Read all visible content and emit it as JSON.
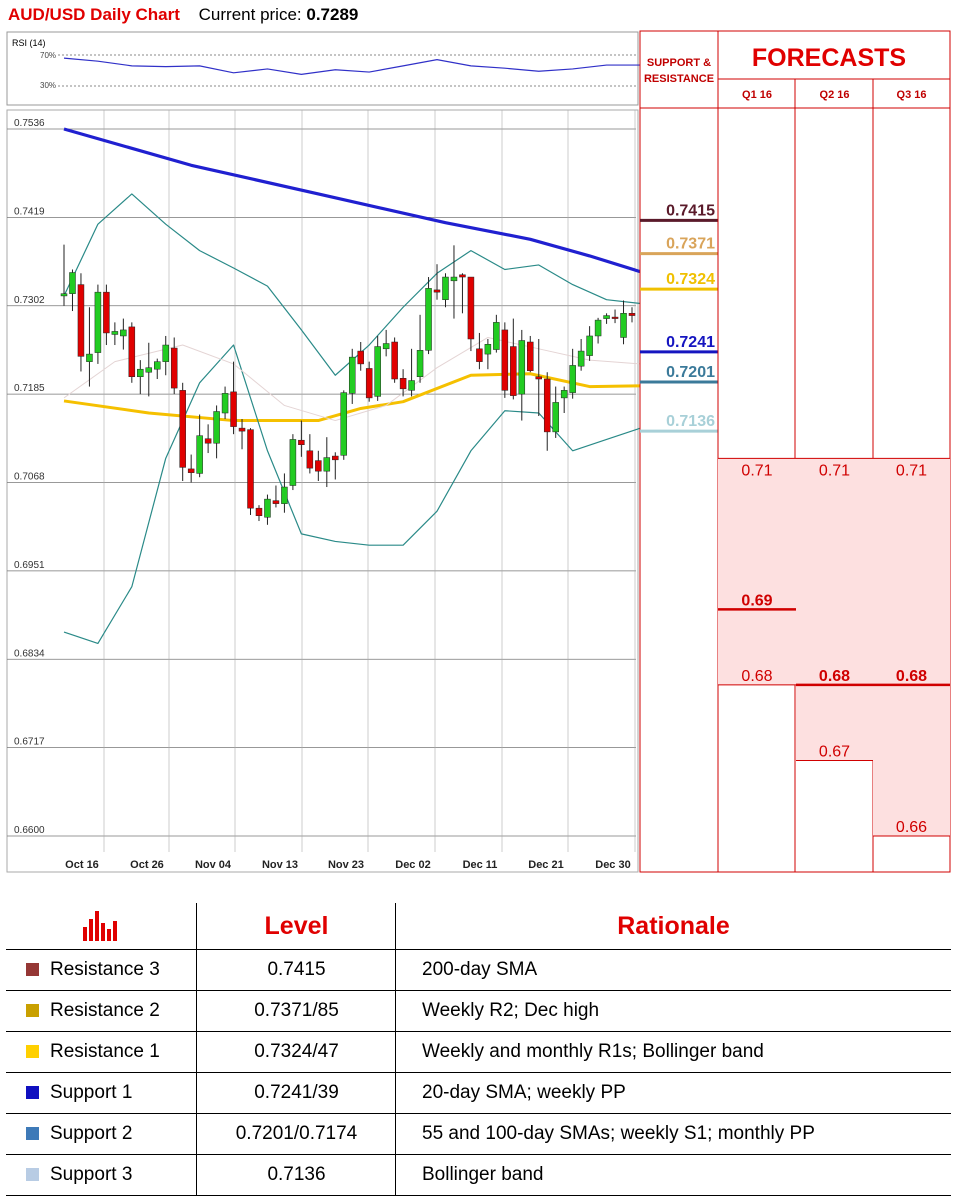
{
  "header": {
    "title": "AUD/USD Daily Chart",
    "current_price_label": "Current price:",
    "current_price": "0.7289"
  },
  "rsi": {
    "label": "RSI (14)",
    "upper": "70%",
    "lower": "30%"
  },
  "chart_data": {
    "type": "line",
    "y_ticks": [
      "0.7536",
      "0.7419",
      "0.7302",
      "0.7185",
      "0.7068",
      "0.6951",
      "0.6834",
      "0.6717",
      "0.6600"
    ],
    "ylim": [
      0.66,
      0.7536
    ],
    "x_ticks": [
      "Oct 16",
      "Oct 26",
      "Nov 04",
      "Nov 13",
      "Nov 23",
      "Dec 02",
      "Dec 11",
      "Dec 21",
      "Dec 30"
    ],
    "candles": [
      {
        "o": 0.7315,
        "h": 0.7383,
        "l": 0.7302,
        "c": 0.7318
      },
      {
        "o": 0.7318,
        "h": 0.735,
        "l": 0.7295,
        "c": 0.7346
      },
      {
        "o": 0.733,
        "h": 0.7345,
        "l": 0.7215,
        "c": 0.7235
      },
      {
        "o": 0.7228,
        "h": 0.73,
        "l": 0.7195,
        "c": 0.7238
      },
      {
        "o": 0.724,
        "h": 0.733,
        "l": 0.7225,
        "c": 0.732
      },
      {
        "o": 0.732,
        "h": 0.733,
        "l": 0.725,
        "c": 0.7266
      },
      {
        "o": 0.7264,
        "h": 0.728,
        "l": 0.725,
        "c": 0.7268
      },
      {
        "o": 0.7262,
        "h": 0.7285,
        "l": 0.7244,
        "c": 0.727
      },
      {
        "o": 0.7274,
        "h": 0.728,
        "l": 0.72,
        "c": 0.7208
      },
      {
        "o": 0.7208,
        "h": 0.723,
        "l": 0.7185,
        "c": 0.7218
      },
      {
        "o": 0.7214,
        "h": 0.7253,
        "l": 0.7182,
        "c": 0.722
      },
      {
        "o": 0.7218,
        "h": 0.7232,
        "l": 0.7205,
        "c": 0.7228
      },
      {
        "o": 0.7228,
        "h": 0.7262,
        "l": 0.721,
        "c": 0.725
      },
      {
        "o": 0.7246,
        "h": 0.726,
        "l": 0.7185,
        "c": 0.7193
      },
      {
        "o": 0.719,
        "h": 0.72,
        "l": 0.707,
        "c": 0.7088
      },
      {
        "o": 0.7086,
        "h": 0.7105,
        "l": 0.7068,
        "c": 0.7081
      },
      {
        "o": 0.708,
        "h": 0.7158,
        "l": 0.7075,
        "c": 0.713
      },
      {
        "o": 0.7126,
        "h": 0.7145,
        "l": 0.7107,
        "c": 0.712
      },
      {
        "o": 0.712,
        "h": 0.717,
        "l": 0.71,
        "c": 0.7162
      },
      {
        "o": 0.716,
        "h": 0.7195,
        "l": 0.7152,
        "c": 0.7186
      },
      {
        "o": 0.7188,
        "h": 0.7228,
        "l": 0.7132,
        "c": 0.7142
      },
      {
        "o": 0.714,
        "h": 0.7152,
        "l": 0.7112,
        "c": 0.7136
      },
      {
        "o": 0.7138,
        "h": 0.714,
        "l": 0.7025,
        "c": 0.7034
      },
      {
        "o": 0.7034,
        "h": 0.7038,
        "l": 0.7017,
        "c": 0.7024
      },
      {
        "o": 0.7022,
        "h": 0.7052,
        "l": 0.7012,
        "c": 0.7046
      },
      {
        "o": 0.7044,
        "h": 0.7064,
        "l": 0.7035,
        "c": 0.704
      },
      {
        "o": 0.704,
        "h": 0.708,
        "l": 0.7028,
        "c": 0.7062
      },
      {
        "o": 0.7064,
        "h": 0.7132,
        "l": 0.7058,
        "c": 0.7125
      },
      {
        "o": 0.7124,
        "h": 0.715,
        "l": 0.7102,
        "c": 0.7118
      },
      {
        "o": 0.711,
        "h": 0.7132,
        "l": 0.708,
        "c": 0.7087
      },
      {
        "o": 0.7097,
        "h": 0.711,
        "l": 0.707,
        "c": 0.7083
      },
      {
        "o": 0.7083,
        "h": 0.7128,
        "l": 0.7062,
        "c": 0.7101
      },
      {
        "o": 0.7103,
        "h": 0.7108,
        "l": 0.7072,
        "c": 0.7098
      },
      {
        "o": 0.7104,
        "h": 0.719,
        "l": 0.7098,
        "c": 0.7187
      },
      {
        "o": 0.7186,
        "h": 0.7245,
        "l": 0.7172,
        "c": 0.7234
      },
      {
        "o": 0.7242,
        "h": 0.7254,
        "l": 0.7216,
        "c": 0.7225
      },
      {
        "o": 0.7219,
        "h": 0.7228,
        "l": 0.7175,
        "c": 0.718
      },
      {
        "o": 0.7182,
        "h": 0.7262,
        "l": 0.7176,
        "c": 0.7248
      },
      {
        "o": 0.7245,
        "h": 0.727,
        "l": 0.7235,
        "c": 0.7252
      },
      {
        "o": 0.7254,
        "h": 0.726,
        "l": 0.72,
        "c": 0.7205
      },
      {
        "o": 0.7206,
        "h": 0.7218,
        "l": 0.7182,
        "c": 0.7192
      },
      {
        "o": 0.719,
        "h": 0.7245,
        "l": 0.7182,
        "c": 0.7203
      },
      {
        "o": 0.7208,
        "h": 0.729,
        "l": 0.72,
        "c": 0.7243
      },
      {
        "o": 0.7243,
        "h": 0.734,
        "l": 0.7238,
        "c": 0.7325
      },
      {
        "o": 0.7323,
        "h": 0.7357,
        "l": 0.731,
        "c": 0.732
      },
      {
        "o": 0.731,
        "h": 0.7345,
        "l": 0.73,
        "c": 0.734
      },
      {
        "o": 0.7335,
        "h": 0.7382,
        "l": 0.7285,
        "c": 0.734
      },
      {
        "o": 0.7343,
        "h": 0.7345,
        "l": 0.7292,
        "c": 0.734
      },
      {
        "o": 0.734,
        "h": 0.734,
        "l": 0.7242,
        "c": 0.7258
      },
      {
        "o": 0.7245,
        "h": 0.7266,
        "l": 0.7218,
        "c": 0.7228
      },
      {
        "o": 0.7238,
        "h": 0.7258,
        "l": 0.7218,
        "c": 0.7251
      },
      {
        "o": 0.7244,
        "h": 0.729,
        "l": 0.724,
        "c": 0.728
      },
      {
        "o": 0.727,
        "h": 0.728,
        "l": 0.718,
        "c": 0.719
      },
      {
        "o": 0.7248,
        "h": 0.7285,
        "l": 0.7178,
        "c": 0.7183
      },
      {
        "o": 0.7185,
        "h": 0.727,
        "l": 0.715,
        "c": 0.7256
      },
      {
        "o": 0.7254,
        "h": 0.7262,
        "l": 0.7214,
        "c": 0.7216
      },
      {
        "o": 0.7208,
        "h": 0.7258,
        "l": 0.7156,
        "c": 0.7205
      },
      {
        "o": 0.7205,
        "h": 0.7214,
        "l": 0.711,
        "c": 0.7135
      },
      {
        "o": 0.7135,
        "h": 0.7195,
        "l": 0.7127,
        "c": 0.7174
      },
      {
        "o": 0.718,
        "h": 0.7195,
        "l": 0.716,
        "c": 0.719
      },
      {
        "o": 0.7187,
        "h": 0.7245,
        "l": 0.7179,
        "c": 0.7223
      },
      {
        "o": 0.7222,
        "h": 0.7258,
        "l": 0.7216,
        "c": 0.7242
      },
      {
        "o": 0.7236,
        "h": 0.7275,
        "l": 0.7229,
        "c": 0.7262
      },
      {
        "o": 0.7262,
        "h": 0.7286,
        "l": 0.7252,
        "c": 0.7283
      },
      {
        "o": 0.7285,
        "h": 0.7292,
        "l": 0.7278,
        "c": 0.7289
      },
      {
        "o": 0.7287,
        "h": 0.7297,
        "l": 0.7279,
        "c": 0.7286
      },
      {
        "o": 0.726,
        "h": 0.7309,
        "l": 0.7251,
        "c": 0.7292
      },
      {
        "o": 0.7292,
        "h": 0.73,
        "l": 0.728,
        "c": 0.7289
      }
    ],
    "series": [
      {
        "color": "#2020d0",
        "values": [
          [
            0,
            0.7536
          ],
          [
            15,
            0.7488
          ],
          [
            30,
            0.745
          ],
          [
            45,
            0.7412
          ],
          [
            55,
            0.739
          ],
          [
            62,
            0.7368
          ],
          [
            68,
            0.7347
          ]
        ]
      },
      {
        "color": "#f5c000",
        "values": [
          [
            0,
            0.7176
          ],
          [
            10,
            0.716
          ],
          [
            20,
            0.715
          ],
          [
            30,
            0.715
          ],
          [
            35,
            0.7166
          ],
          [
            40,
            0.7175
          ],
          [
            48,
            0.721
          ],
          [
            55,
            0.7212
          ],
          [
            62,
            0.7195
          ],
          [
            68,
            0.7196
          ]
        ]
      },
      {
        "color": "#2a8a88",
        "values": [
          [
            0,
            0.687
          ],
          [
            4,
            0.6855
          ],
          [
            8,
            0.693
          ],
          [
            12,
            0.71
          ],
          [
            16,
            0.72
          ],
          [
            20,
            0.725
          ],
          [
            24,
            0.711
          ],
          [
            28,
            0.7
          ],
          [
            32,
            0.699
          ],
          [
            36,
            0.6985
          ],
          [
            40,
            0.6985
          ],
          [
            44,
            0.703
          ],
          [
            48,
            0.711
          ],
          [
            52,
            0.7163
          ],
          [
            56,
            0.716
          ],
          [
            60,
            0.711
          ],
          [
            64,
            0.7125
          ],
          [
            68,
            0.714
          ]
        ]
      },
      {
        "color": "#2a8a88",
        "values": [
          [
            0,
            0.7315
          ],
          [
            4,
            0.741
          ],
          [
            8,
            0.745
          ],
          [
            12,
            0.741
          ],
          [
            16,
            0.7375
          ],
          [
            20,
            0.7352
          ],
          [
            24,
            0.7328
          ],
          [
            28,
            0.727
          ],
          [
            32,
            0.721
          ],
          [
            36,
            0.725
          ],
          [
            40,
            0.73
          ],
          [
            44,
            0.7345
          ],
          [
            48,
            0.7375
          ],
          [
            52,
            0.735
          ],
          [
            56,
            0.7356
          ],
          [
            60,
            0.733
          ],
          [
            64,
            0.731
          ],
          [
            68,
            0.7305
          ]
        ]
      },
      {
        "color": "#e4d4d4",
        "values": [
          [
            0,
            0.718
          ],
          [
            6,
            0.7228
          ],
          [
            14,
            0.725
          ],
          [
            20,
            0.7225
          ],
          [
            26,
            0.717
          ],
          [
            32,
            0.715
          ],
          [
            38,
            0.717
          ],
          [
            44,
            0.722
          ],
          [
            50,
            0.726
          ],
          [
            56,
            0.7245
          ],
          [
            62,
            0.723
          ],
          [
            68,
            0.7225
          ]
        ]
      }
    ],
    "rsi": [
      {
        "x": 0,
        "y": 66
      },
      {
        "x": 4,
        "y": 62
      },
      {
        "x": 8,
        "y": 56
      },
      {
        "x": 12,
        "y": 55
      },
      {
        "x": 16,
        "y": 56
      },
      {
        "x": 20,
        "y": 47
      },
      {
        "x": 24,
        "y": 52
      },
      {
        "x": 28,
        "y": 45
      },
      {
        "x": 32,
        "y": 51
      },
      {
        "x": 36,
        "y": 48
      },
      {
        "x": 40,
        "y": 56
      },
      {
        "x": 44,
        "y": 64
      },
      {
        "x": 48,
        "y": 56
      },
      {
        "x": 52,
        "y": 53
      },
      {
        "x": 56,
        "y": 49
      },
      {
        "x": 60,
        "y": 52
      },
      {
        "x": 64,
        "y": 57
      },
      {
        "x": 68,
        "y": 57
      }
    ]
  },
  "support_resistance": {
    "header_line1": "SUPPORT &",
    "header_line2": "RESISTANCE",
    "levels": [
      {
        "label": "0.7415",
        "value": 0.7415,
        "color": "#5a1a2a"
      },
      {
        "label": "0.7371",
        "value": 0.7371,
        "color": "#d9a45a"
      },
      {
        "label": "0.7324",
        "value": 0.7324,
        "color": "#f0c000"
      },
      {
        "label": "0.7241",
        "value": 0.7241,
        "color": "#1515c0"
      },
      {
        "label": "0.7201",
        "value": 0.7201,
        "color": "#3b7a9a"
      },
      {
        "label": "0.7136",
        "value": 0.7136,
        "color": "#a8d0d8"
      }
    ]
  },
  "forecasts": {
    "title": "FORECASTS",
    "quarters": [
      {
        "label": "Q1 16",
        "high": "0.71",
        "mid": "0.69",
        "low": "0.68",
        "high_val": 0.71,
        "mid_val": 0.69,
        "low_val": 0.68,
        "bold": "mid"
      },
      {
        "label": "Q2 16",
        "high": "0.71",
        "mid": "0.68",
        "low": "0.67",
        "high_val": 0.71,
        "mid_val": 0.68,
        "low_val": 0.67,
        "bold": "mid"
      },
      {
        "label": "Q3 16",
        "high": "0.71",
        "mid": "0.68",
        "low": "0.66",
        "high_val": 0.71,
        "mid_val": 0.68,
        "low_val": 0.66,
        "bold": "mid"
      }
    ]
  },
  "table": {
    "headers": {
      "level": "Level",
      "rationale": "Rationale"
    },
    "rows": [
      {
        "name": "Resistance 3",
        "level": "0.7415",
        "rationale": "200-day SMA",
        "color": "#953735"
      },
      {
        "name": "Resistance 2",
        "level": "0.7371/85",
        "rationale": "Weekly R2; Dec high",
        "color": "#c9a000"
      },
      {
        "name": "Resistance 1",
        "level": "0.7324/47",
        "rationale": "Weekly and monthly R1s; Bollinger band",
        "color": "#ffd000"
      },
      {
        "name": "Support 1",
        "level": "0.7241/39",
        "rationale": "20-day SMA; weekly PP",
        "color": "#1010c0"
      },
      {
        "name": "Support 2",
        "level": "0.7201/0.7174",
        "rationale": "55 and 100-day SMAs; weekly S1; monthly PP",
        "color": "#3e7ab8"
      },
      {
        "name": "Support 3",
        "level": "0.7136",
        "rationale": "Bollinger band",
        "color": "#b8cce4"
      }
    ]
  }
}
